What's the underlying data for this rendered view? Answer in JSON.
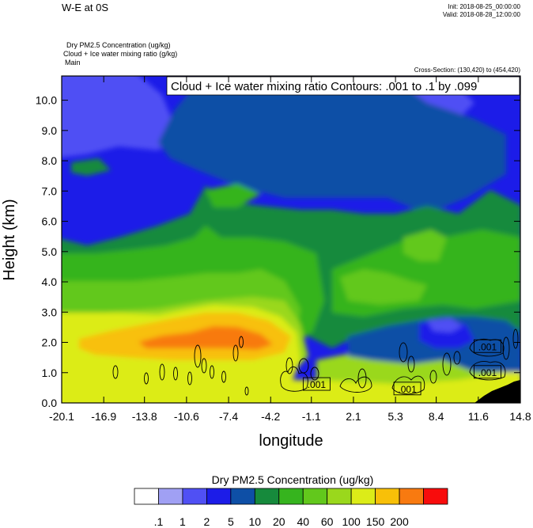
{
  "header": {
    "title_left": "W-E at 0S",
    "init": "Init: 2018-08-25_00:00:00",
    "valid": "Valid: 2018-08-28_12:00:00",
    "field1": "Dry PM2.5 Concentration   (ug/kg)",
    "field2": "Cloud + Ice water mixing ratio   (g/kg)",
    "field3": "Main",
    "cross_section": "Cross-Section: (130,420) to (454,420)"
  },
  "contour_label": "Cloud + Ice water mixing ratio Contours: .001 to .1 by .099",
  "chart_data": {
    "type": "heatmap",
    "xlabel": "longitude",
    "ylabel": "Height (km)",
    "xlim": [
      -20.1,
      14.8
    ],
    "ylim": [
      0.0,
      10.8
    ],
    "x_ticks": [
      "-20.1",
      "-16.9",
      "-13.8",
      "-10.6",
      "-7.4",
      "-4.2",
      "-1.1",
      "2.1",
      "5.3",
      "8.4",
      "11.6",
      "14.8"
    ],
    "x_tick_values": [
      -20.1,
      -16.9,
      -13.8,
      -10.6,
      -7.4,
      -4.2,
      -1.1,
      2.1,
      5.3,
      8.4,
      11.6,
      14.8
    ],
    "y_ticks": [
      "0.0",
      "1.0",
      "2.0",
      "3.0",
      "4.0",
      "5.0",
      "6.0",
      "7.0",
      "8.0",
      "9.0",
      "10.0"
    ],
    "y_tick_values": [
      0,
      1,
      2,
      3,
      4,
      5,
      6,
      7,
      8,
      9,
      10
    ],
    "contour_labels": [
      {
        "text": ".001",
        "x": -0.7,
        "y": 0.6
      },
      {
        "text": ".001",
        "x": 6.2,
        "y": 0.45
      },
      {
        "text": ".001",
        "x": 12.3,
        "y": 1.0
      },
      {
        "text": ".001",
        "x": 12.3,
        "y": 1.85
      }
    ],
    "colorbar": {
      "title": "Dry PM2.5 Concentration  (ug/kg)",
      "labels": [
        ".1",
        "1",
        "2",
        "5",
        "10",
        "20",
        "40",
        "60",
        "100",
        "150",
        "200"
      ],
      "colors": [
        "#ffffff",
        "#a0a0f4",
        "#5050f4",
        "#1c1ce8",
        "#0e4fa6",
        "#168a3c",
        "#36b41e",
        "#62c81c",
        "#9ad81c",
        "#dcec18",
        "#f8c008",
        "#f87a10",
        "#f80c0c"
      ]
    }
  }
}
